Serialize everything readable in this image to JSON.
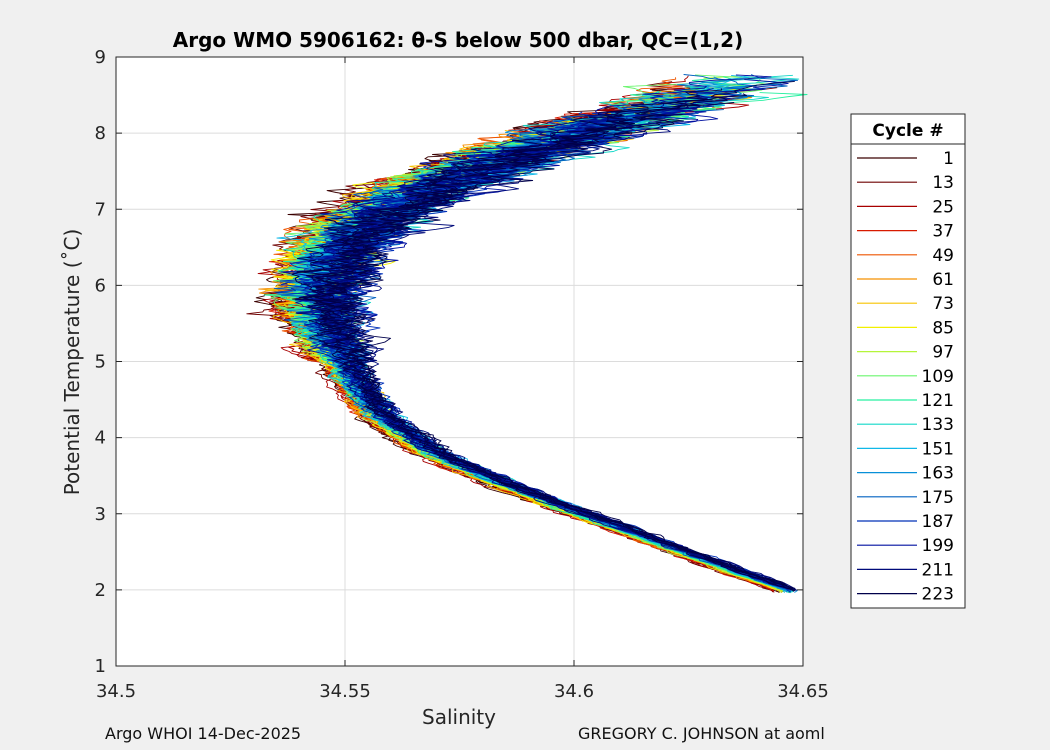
{
  "chart_data": {
    "type": "line",
    "title": "Argo WMO 5906162: θ-S below 500 dbar,  QC=(1,2)",
    "xlabel": "Salinity",
    "ylabel": "Potential Temperature (˚C)",
    "xlim": [
      34.5,
      34.65
    ],
    "ylim": [
      1,
      9
    ],
    "xticks": [
      34.5,
      34.55,
      34.6,
      34.65
    ],
    "xtick_labels": [
      "34.5",
      "34.55",
      "34.6",
      "34.65"
    ],
    "yticks": [
      1,
      2,
      3,
      4,
      5,
      6,
      7,
      8,
      9
    ],
    "ytick_labels": [
      "1",
      "2",
      "3",
      "4",
      "5",
      "6",
      "7",
      "8",
      "9"
    ],
    "grid": true,
    "legend": {
      "title": "Cycle #",
      "placement": "outside-right",
      "entries": [
        {
          "label": "1",
          "color": "#3a0000"
        },
        {
          "label": "13",
          "color": "#6e0000"
        },
        {
          "label": "25",
          "color": "#a80000"
        },
        {
          "label": "37",
          "color": "#d81a00"
        },
        {
          "label": "49",
          "color": "#ee5500"
        },
        {
          "label": "61",
          "color": "#f59000"
        },
        {
          "label": "73",
          "color": "#f7c400"
        },
        {
          "label": "85",
          "color": "#f2f000"
        },
        {
          "label": "97",
          "color": "#b5f53a"
        },
        {
          "label": "109",
          "color": "#6af56e"
        },
        {
          "label": "121",
          "color": "#28f0a0"
        },
        {
          "label": "133",
          "color": "#12d8c8"
        },
        {
          "label": "151",
          "color": "#10b8e8"
        },
        {
          "label": "163",
          "color": "#0890d8"
        },
        {
          "label": "175",
          "color": "#0060c0"
        },
        {
          "label": "187",
          "color": "#0030b8"
        },
        {
          "label": "199",
          "color": "#0010a0"
        },
        {
          "label": "211",
          "color": "#000a7a"
        },
        {
          "label": "223",
          "color": "#00004a"
        }
      ]
    },
    "mean_curve": {
      "s": [
        34.647,
        34.638,
        34.62,
        34.6,
        34.585,
        34.57,
        34.558,
        34.552,
        34.548,
        34.546,
        34.548,
        34.555,
        34.57,
        34.59,
        34.61,
        34.625,
        34.635
      ],
      "theta": [
        2.0,
        2.2,
        2.6,
        3.05,
        3.4,
        3.8,
        4.3,
        4.8,
        5.3,
        5.8,
        6.3,
        6.8,
        7.3,
        7.75,
        8.15,
        8.45,
        8.7
      ]
    },
    "series_spread": {
      "early_cycles_offset_s": -0.004,
      "late_cycles_offset_s": 0.002
    },
    "footer_left": "Argo WHOI 14-Dec-2025",
    "footer_right": "GREGORY C. JOHNSON at aoml"
  }
}
